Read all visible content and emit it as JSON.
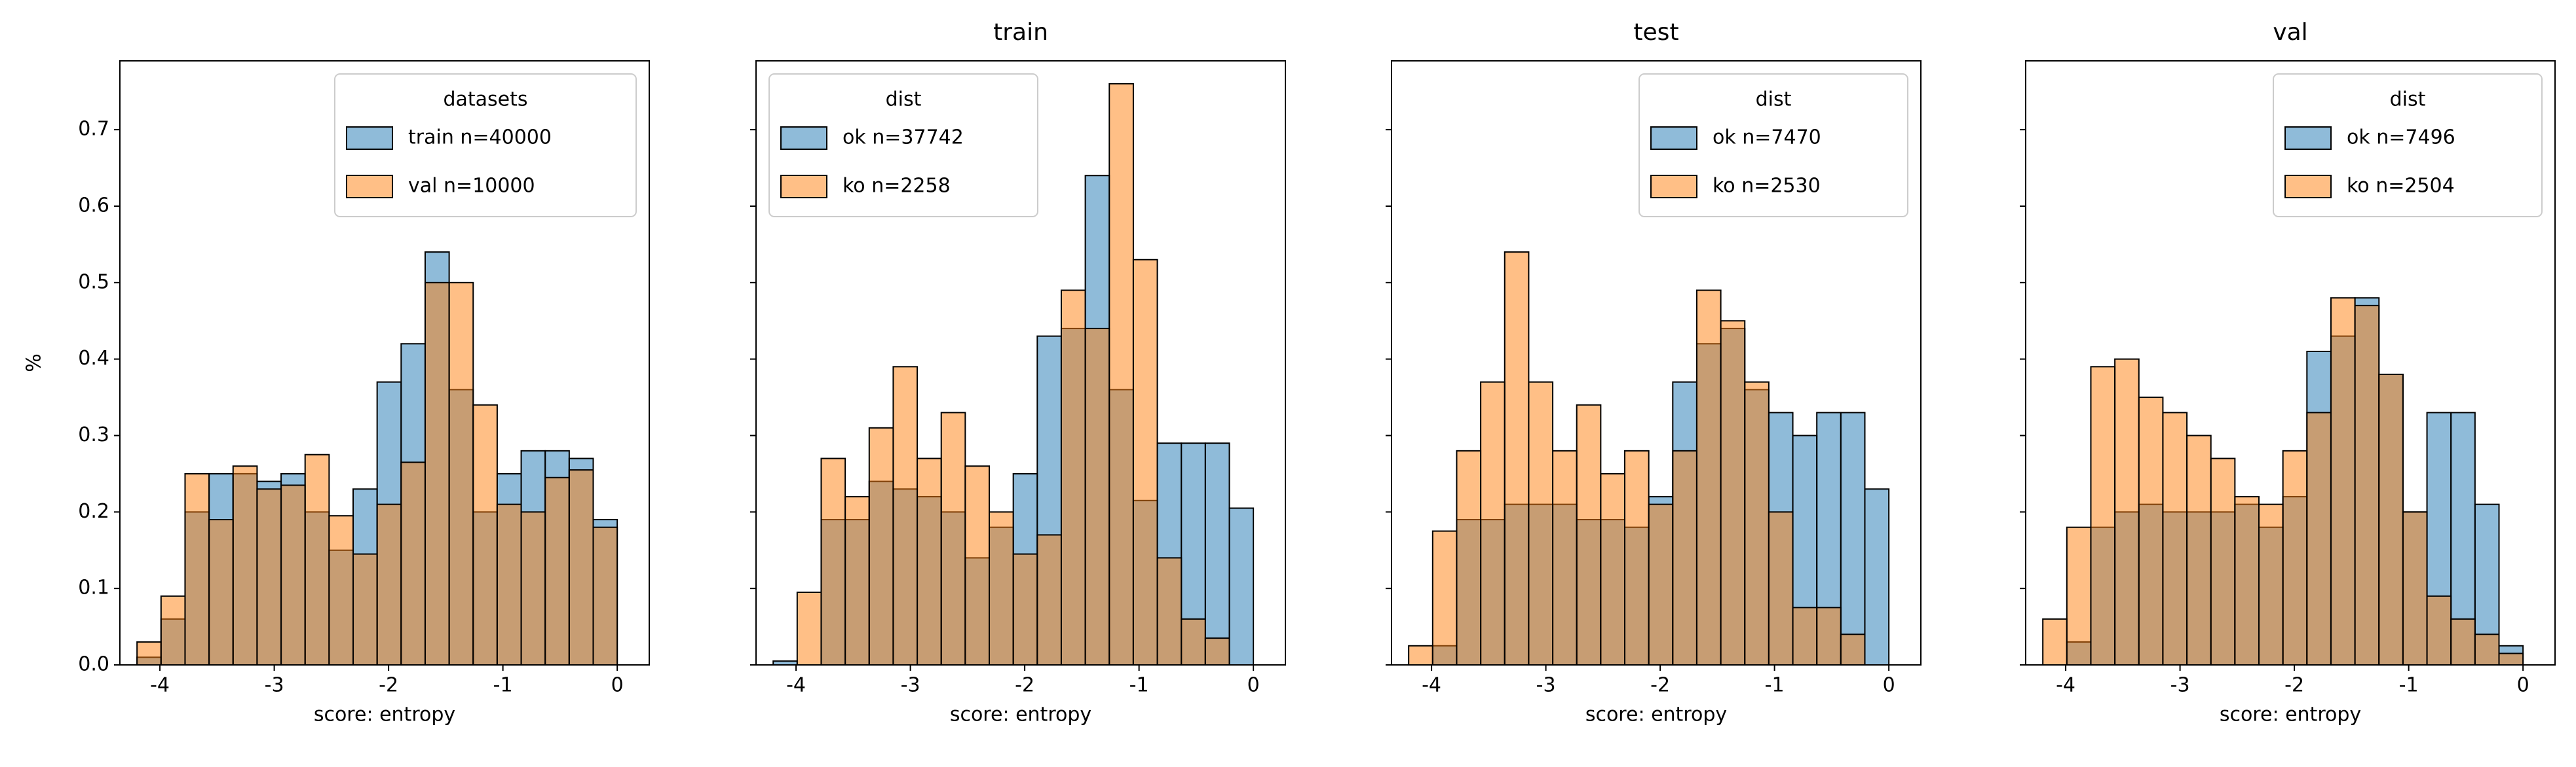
{
  "chart_data": [
    {
      "type": "histogram",
      "ylabel": "%",
      "xlabel": "score: entropy",
      "legend_title": "datasets",
      "legend": "upper right",
      "show_ytick_labels": true,
      "bins": [
        -4.2,
        -3.99,
        -3.78,
        -3.57,
        -3.36,
        -3.15,
        -2.94,
        -2.73,
        -2.52,
        -2.31,
        -2.1,
        -1.89,
        -1.68,
        -1.47,
        -1.26,
        -1.05,
        -0.84,
        -0.63,
        -0.42,
        -0.21,
        0
      ],
      "series": [
        {
          "name": "train n=40000",
          "color": "#1f77b4",
          "values": [
            0.01,
            0.06,
            0.2,
            0.25,
            0.25,
            0.24,
            0.25,
            0.2,
            0.15,
            0.23,
            0.37,
            0.42,
            0.54,
            0.36,
            0.2,
            0.25,
            0.28,
            0.28,
            0.27,
            0.19
          ]
        },
        {
          "name": "val n=10000",
          "color": "#ff7f0e",
          "values": [
            0.03,
            0.09,
            0.25,
            0.19,
            0.26,
            0.23,
            0.235,
            0.275,
            0.195,
            0.145,
            0.21,
            0.265,
            0.5,
            0.5,
            0.34,
            0.21,
            0.2,
            0.245,
            0.255,
            0.18
          ]
        }
      ],
      "xlim": [
        -4.35,
        0.28
      ],
      "xticks": [
        -4,
        -3,
        -2,
        -1,
        0
      ],
      "ylim": [
        0,
        0.79
      ],
      "yticks": [
        {
          "value": 0,
          "label": "0.0"
        },
        0.1,
        0.2,
        0.3,
        0.4,
        0.5,
        0.6,
        0.7
      ]
    },
    {
      "type": "histogram",
      "title": "train",
      "xlabel": "score: entropy",
      "legend_title": "dist",
      "legend": "upper left",
      "show_ytick_labels": false,
      "bins": [
        -4.2,
        -3.99,
        -3.78,
        -3.57,
        -3.36,
        -3.15,
        -2.94,
        -2.73,
        -2.52,
        -2.31,
        -2.1,
        -1.89,
        -1.68,
        -1.47,
        -1.26,
        -1.05,
        -0.84,
        -0.63,
        -0.42,
        -0.21,
        0
      ],
      "series": [
        {
          "name": "ok n=37742",
          "color": "#1f77b4",
          "values": [
            0.005,
            0.0,
            0.19,
            0.19,
            0.24,
            0.23,
            0.22,
            0.2,
            0.14,
            0.18,
            0.25,
            0.43,
            0.44,
            0.64,
            0.36,
            0.215,
            0.29,
            0.29,
            0.29,
            0.205
          ]
        },
        {
          "name": "ko n=2258",
          "color": "#ff7f0e",
          "values": [
            0.0,
            0.095,
            0.27,
            0.22,
            0.31,
            0.39,
            0.27,
            0.33,
            0.26,
            0.2,
            0.145,
            0.17,
            0.49,
            0.44,
            0.76,
            0.53,
            0.14,
            0.06,
            0.035,
            0.0
          ]
        }
      ],
      "xlim": [
        -4.35,
        0.28
      ],
      "xticks": [
        -4,
        -3,
        -2,
        -1,
        0
      ],
      "ylim": [
        0,
        0.79
      ],
      "yticks": [
        0,
        0.1,
        0.2,
        0.3,
        0.4,
        0.5,
        0.6,
        0.7
      ]
    },
    {
      "type": "histogram",
      "title": "test",
      "xlabel": "score: entropy",
      "legend_title": "dist",
      "legend": "upper right",
      "show_ytick_labels": false,
      "bins": [
        -4.2,
        -3.99,
        -3.78,
        -3.57,
        -3.36,
        -3.15,
        -2.94,
        -2.73,
        -2.52,
        -2.31,
        -2.1,
        -1.89,
        -1.68,
        -1.47,
        -1.26,
        -1.05,
        -0.84,
        -0.63,
        -0.42,
        -0.21,
        0
      ],
      "series": [
        {
          "name": "ok n=7470",
          "color": "#1f77b4",
          "values": [
            0.0,
            0.025,
            0.19,
            0.19,
            0.21,
            0.21,
            0.21,
            0.19,
            0.19,
            0.18,
            0.22,
            0.37,
            0.42,
            0.44,
            0.36,
            0.33,
            0.3,
            0.33,
            0.33,
            0.23
          ]
        },
        {
          "name": "ko n=2530",
          "color": "#ff7f0e",
          "values": [
            0.025,
            0.175,
            0.28,
            0.37,
            0.54,
            0.37,
            0.28,
            0.34,
            0.25,
            0.28,
            0.21,
            0.28,
            0.49,
            0.45,
            0.37,
            0.2,
            0.075,
            0.075,
            0.04,
            0.0
          ]
        }
      ],
      "xlim": [
        -4.35,
        0.28
      ],
      "xticks": [
        -4,
        -3,
        -2,
        -1,
        0
      ],
      "ylim": [
        0,
        0.79
      ],
      "yticks": [
        0,
        0.1,
        0.2,
        0.3,
        0.4,
        0.5,
        0.6,
        0.7
      ]
    },
    {
      "type": "histogram",
      "title": "val",
      "xlabel": "score: entropy",
      "legend_title": "dist",
      "legend": "upper right",
      "show_ytick_labels": false,
      "bins": [
        -4.2,
        -3.99,
        -3.78,
        -3.57,
        -3.36,
        -3.15,
        -2.94,
        -2.73,
        -2.52,
        -2.31,
        -2.1,
        -1.89,
        -1.68,
        -1.47,
        -1.26,
        -1.05,
        -0.84,
        -0.63,
        -0.42,
        -0.21,
        0
      ],
      "series": [
        {
          "name": "ok n=7496",
          "color": "#1f77b4",
          "values": [
            0.0,
            0.03,
            0.18,
            0.2,
            0.21,
            0.2,
            0.2,
            0.2,
            0.21,
            0.18,
            0.22,
            0.41,
            0.43,
            0.48,
            0.38,
            0.2,
            0.33,
            0.33,
            0.21,
            0.025
          ]
        },
        {
          "name": "ko n=2504",
          "color": "#ff7f0e",
          "values": [
            0.06,
            0.18,
            0.39,
            0.4,
            0.35,
            0.33,
            0.3,
            0.27,
            0.22,
            0.21,
            0.28,
            0.33,
            0.48,
            0.47,
            0.38,
            0.2,
            0.09,
            0.06,
            0.04,
            0.015
          ]
        }
      ],
      "xlim": [
        -4.35,
        0.28
      ],
      "xticks": [
        -4,
        -3,
        -2,
        -1,
        0
      ],
      "ylim": [
        0,
        0.79
      ],
      "yticks": [
        0,
        0.1,
        0.2,
        0.3,
        0.4,
        0.5,
        0.6,
        0.7
      ]
    }
  ]
}
